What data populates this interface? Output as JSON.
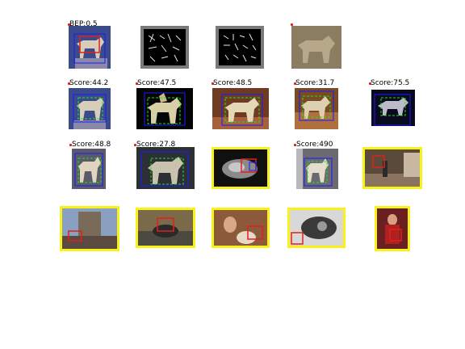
{
  "figure": {
    "row1": {
      "label_first": "BEP:0.5"
    },
    "row2": {
      "labels": [
        "Score:44.2",
        "Score:47.5",
        "Score:48.5",
        "Score:31.7",
        "Score:75.5"
      ]
    },
    "row3": {
      "labels": [
        "Score:48.8",
        "Score:27.8",
        "Score:490"
      ]
    }
  },
  "colors": {
    "detection_blue": "#1a1aff",
    "groundtruth_green": "#20e020",
    "false_positive_red": "#e0201c",
    "highlight_yellow": "#f8f21a"
  }
}
